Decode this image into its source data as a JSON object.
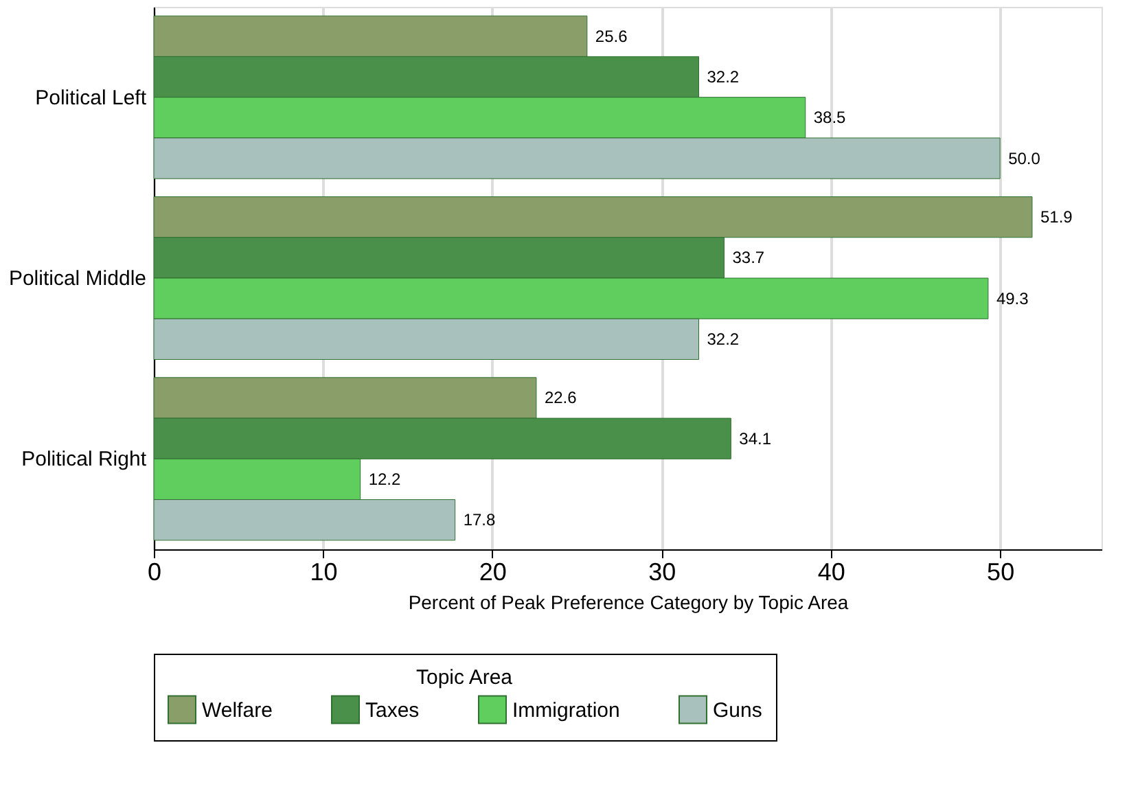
{
  "chart_data": {
    "type": "bar",
    "orientation": "horizontal",
    "xlabel": "Percent of Peak Preference Category by Topic Area",
    "legend_title": "Topic Area",
    "categories": [
      "Political Left",
      "Political Middle",
      "Political Right"
    ],
    "series": [
      {
        "name": "Welfare",
        "color": "#8a9e6a",
        "values": [
          25.6,
          51.9,
          22.6
        ],
        "value_labels": [
          "25.6",
          "51.9",
          "22.6"
        ]
      },
      {
        "name": "Taxes",
        "color": "#4a8f4a",
        "values": [
          32.2,
          33.7,
          34.1
        ],
        "value_labels": [
          "32.2",
          "33.7",
          "34.1"
        ]
      },
      {
        "name": "Immigration",
        "color": "#5fce5f",
        "values": [
          38.5,
          49.3,
          12.2
        ],
        "value_labels": [
          "38.5",
          "49.3",
          "12.2"
        ]
      },
      {
        "name": "Guns",
        "color": "#a9c1bd",
        "values": [
          50.0,
          32.2,
          17.8
        ],
        "value_labels": [
          "50.0",
          "32.2",
          "17.8"
        ]
      }
    ],
    "xlim": [
      0,
      56
    ],
    "xticks": [
      0,
      10,
      20,
      30,
      40,
      50
    ],
    "grid": "x",
    "legend": "bottom"
  }
}
